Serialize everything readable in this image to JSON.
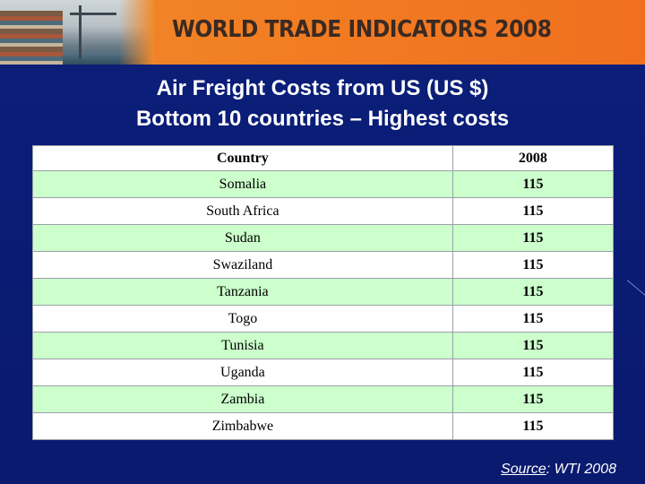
{
  "banner": {
    "title": "WORLD TRADE INDICATORS 2008"
  },
  "titles": {
    "line1": "Air Freight Costs from US  (US $)",
    "line2": "Bottom 10 countries – Highest costs"
  },
  "table": {
    "headers": [
      "Country",
      "2008"
    ],
    "rows": [
      {
        "country": "Somalia",
        "value": "115"
      },
      {
        "country": "South Africa",
        "value": "115"
      },
      {
        "country": "Sudan",
        "value": "115"
      },
      {
        "country": "Swaziland",
        "value": "115"
      },
      {
        "country": "Tanzania",
        "value": "115"
      },
      {
        "country": "Togo",
        "value": "115"
      },
      {
        "country": "Tunisia",
        "value": "115"
      },
      {
        "country": "Uganda",
        "value": "115"
      },
      {
        "country": "Zambia",
        "value": "115"
      },
      {
        "country": "Zimbabwe",
        "value": "115"
      }
    ]
  },
  "source": {
    "label": "Source",
    "text": ": WTI 2008"
  },
  "colors": {
    "background": "#0a1b73",
    "banner": "#f27d22",
    "row_green": "#ccffcc",
    "row_white": "#ffffff"
  }
}
